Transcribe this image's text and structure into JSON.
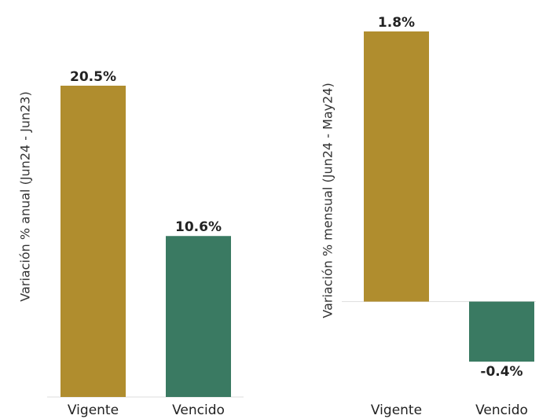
{
  "chart_data": [
    {
      "type": "bar",
      "ylabel": "Variación % anual (Jun24 - Jun23)",
      "categories": [
        "Vigente",
        "Vencido"
      ],
      "values": [
        20.5,
        10.6
      ],
      "value_labels": [
        "20.5%",
        "10.6%"
      ],
      "colors": [
        "#b08d2e",
        "#3a7a62"
      ]
    },
    {
      "type": "bar",
      "ylabel": "Variación % mensual (Jun24 - May24)",
      "categories": [
        "Vigente",
        "Vencido"
      ],
      "values": [
        1.8,
        -0.4
      ],
      "value_labels": [
        "1.8%",
        "-0.4%"
      ],
      "colors": [
        "#b08d2e",
        "#3a7a62"
      ]
    }
  ]
}
